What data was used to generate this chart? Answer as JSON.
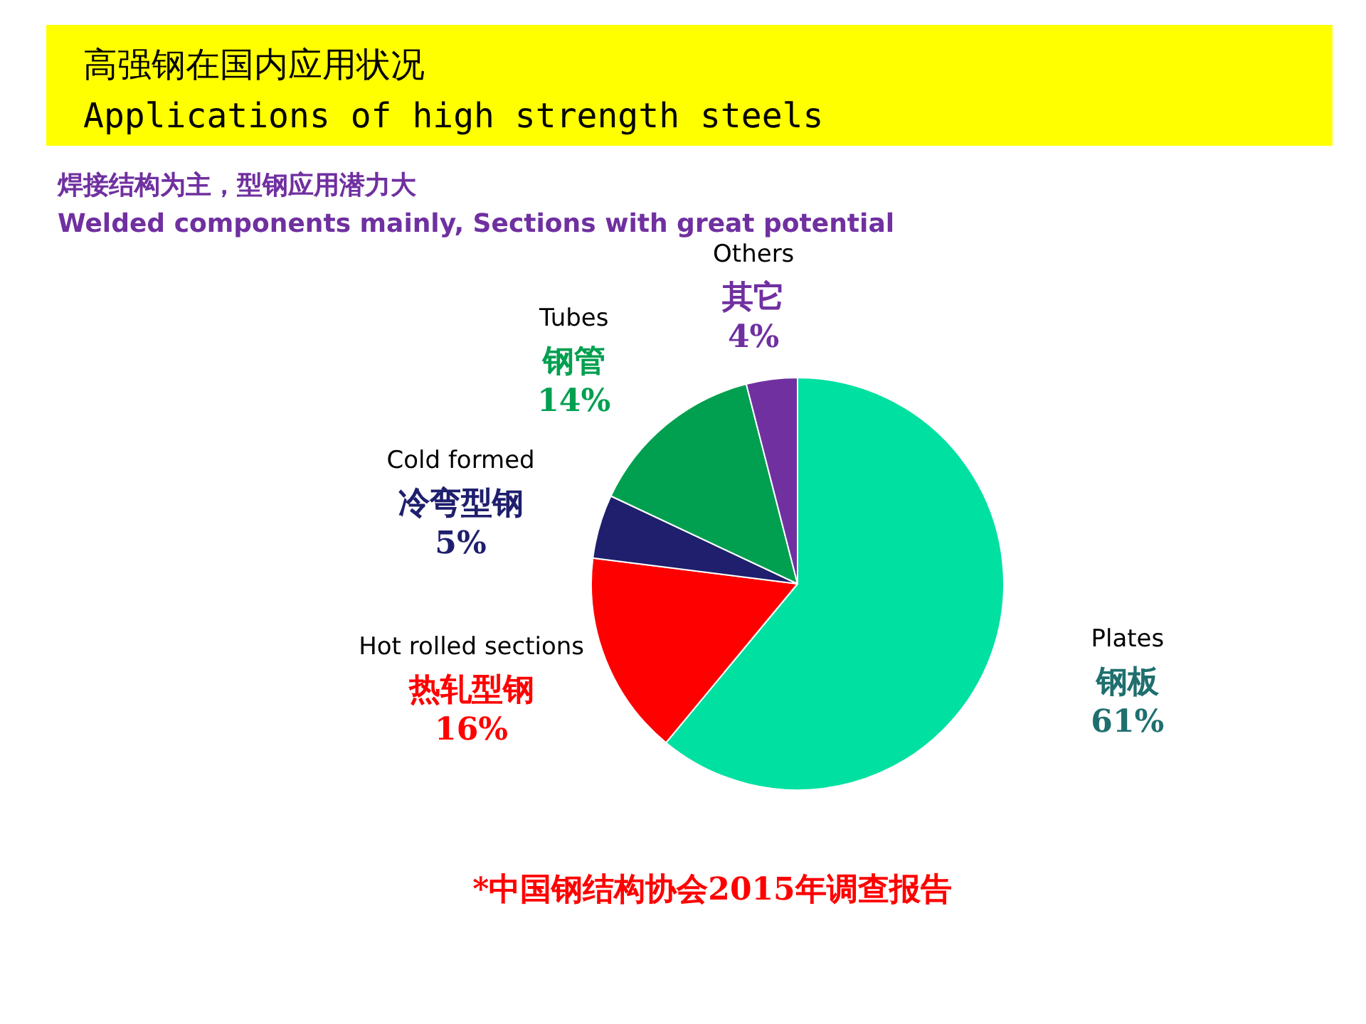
{
  "chart_data": {
    "type": "pie",
    "title": "高强钢在国内应用状况\nApplications of high strength steels",
    "subtitle": "焊接结构为主，型钢应用潜力大\nWelded components mainly, Sections with great potential",
    "categories": [
      "钢板",
      "热轧型钢",
      "冷弯型钢",
      "钢管",
      "其它"
    ],
    "values": [
      61,
      16,
      5,
      14,
      4
    ],
    "value_labels": [
      "61%",
      "16%",
      "5%",
      "14%",
      "4%"
    ],
    "colors": [
      "#00e0a0",
      "#ff0000",
      "#1f1f6e",
      "#00a050",
      "#7030a0"
    ],
    "annotations": [
      "Plates",
      "Hot rolled sections",
      "Cold formed",
      "Tubes",
      "Others",
      "*中国钢结构协会2015年调查报告"
    ]
  }
}
